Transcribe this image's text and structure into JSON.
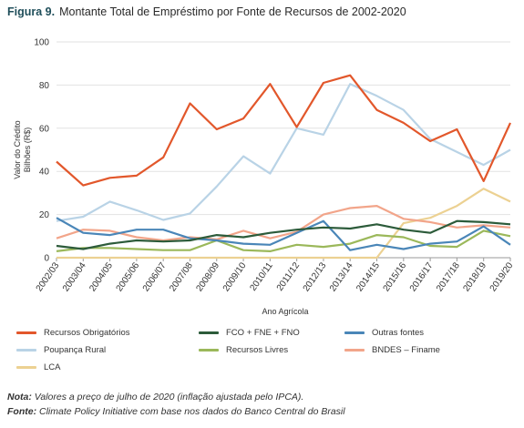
{
  "figure": {
    "label": "Figura 9.",
    "title": "Montante Total de Empréstimo por Fonte de Recursos de 2002-2020"
  },
  "notes": {
    "note_label": "Nota:",
    "note_text": "Valores a preço de julho de 2020 (inflação ajustada pelo IPCA).",
    "source_label": "Fonte:",
    "source_text": "Climate Policy Initiative com base nos dados do Banco Central do Brasil"
  },
  "chart_data": {
    "type": "line",
    "xlabel": "Ano Agrícola",
    "ylabel": "Valor do Crédito Bilhões (R$)",
    "ylabel_lines": [
      "Valor do Crédito",
      "Bilhões (R$)"
    ],
    "ylim": [
      0,
      100
    ],
    "yticks": [
      0,
      20,
      40,
      60,
      80,
      100
    ],
    "grid": "horizontal",
    "legend_position": "bottom",
    "categories": [
      "2002/03",
      "2003/04",
      "2004/05",
      "2005/06",
      "2006/07",
      "2007/08",
      "2008/09",
      "2009/10",
      "2010/11",
      "2011/12",
      "2012/13",
      "2013/14",
      "2014/15",
      "2015/16",
      "2016/17",
      "2017/18",
      "2018/19",
      "2019/20"
    ],
    "series": [
      {
        "name": "Recursos Obrigatórios",
        "color": "#e2572b",
        "values": [
          44.5,
          33.5,
          37,
          38,
          46.5,
          71.5,
          59.5,
          64.5,
          80.5,
          60.5,
          81,
          84.5,
          68.5,
          62.5,
          54,
          59.5,
          35.5,
          62.5
        ]
      },
      {
        "name": "FCO + FNE + FNO",
        "color": "#2c5b3a",
        "values": [
          5.5,
          4,
          6.5,
          8,
          7.5,
          8,
          10.5,
          9.5,
          11.5,
          13,
          14,
          13.5,
          15.5,
          13,
          11.5,
          17,
          16.5,
          15.5
        ]
      },
      {
        "name": "Outras fontes",
        "color": "#4a86b8",
        "values": [
          18.5,
          11.5,
          10.5,
          13,
          13,
          9,
          8,
          6.5,
          6,
          11.5,
          17,
          3.5,
          6,
          4,
          6.5,
          7.5,
          14.5,
          6
        ]
      },
      {
        "name": "Poupança Rural",
        "color": "#b9d3e6",
        "values": [
          17,
          19,
          26,
          22,
          17.5,
          20.5,
          33,
          47,
          39,
          60,
          57,
          80.5,
          75,
          68.5,
          55,
          49,
          43,
          50
        ]
      },
      {
        "name": "Recursos Livres",
        "color": "#9bb85a",
        "values": [
          3,
          4.5,
          4.5,
          4,
          3.5,
          3.5,
          8,
          3.5,
          3,
          6,
          5,
          6.5,
          10.5,
          9.5,
          5.5,
          5,
          12.5,
          10
        ]
      },
      {
        "name": "BNDES – Finame",
        "color": "#f2a58a",
        "values": [
          9,
          13,
          12.5,
          9.5,
          8,
          9.5,
          8.5,
          12.5,
          9,
          12,
          20,
          23,
          24,
          18,
          16.5,
          14,
          15,
          14
        ]
      },
      {
        "name": "LCA",
        "color": "#ecd192",
        "values": [
          0,
          0,
          0,
          0,
          0,
          0,
          0,
          0,
          0,
          0,
          0,
          0,
          0,
          16,
          18.5,
          24,
          32,
          26
        ]
      }
    ]
  }
}
